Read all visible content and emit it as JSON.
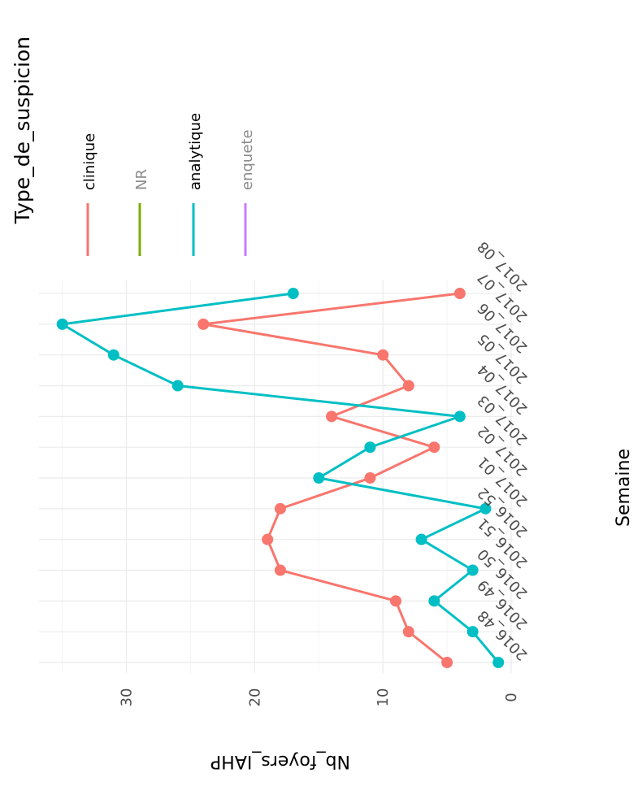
{
  "chart_data": {
    "type": "line",
    "xlabel": "Semaine",
    "ylabel": "Nb_foyers_IAHP",
    "categories": [
      "2016_48",
      "2016_49",
      "2016_50",
      "2016_51",
      "2016_52",
      "2017_01",
      "2017_02",
      "2017_03",
      "2017_04",
      "2017_05",
      "2017_06",
      "2017_07",
      "2017_08"
    ],
    "ylim": [
      0,
      36
    ],
    "yticks": [
      0,
      10,
      20,
      30
    ],
    "grid": true,
    "legend": {
      "title": "Type_de_suspicion",
      "position": "top",
      "entries": [
        {
          "name": "clinique",
          "color": "#F8766D"
        },
        {
          "name": "NR",
          "color": "#7CAE00"
        },
        {
          "name": "analytique",
          "color": "#00BFC4"
        },
        {
          "name": "enquete",
          "color": "#C77CFF"
        }
      ]
    },
    "series": [
      {
        "name": "clinique",
        "color": "#F8766D",
        "values": [
          5,
          8,
          9,
          18,
          19,
          18,
          11,
          6,
          14,
          8,
          10,
          24,
          4
        ]
      },
      {
        "name": "analytique",
        "color": "#00BFC4",
        "values": [
          1,
          3,
          6,
          3,
          7,
          2,
          15,
          11,
          4,
          26,
          31,
          35,
          17
        ]
      }
    ]
  }
}
